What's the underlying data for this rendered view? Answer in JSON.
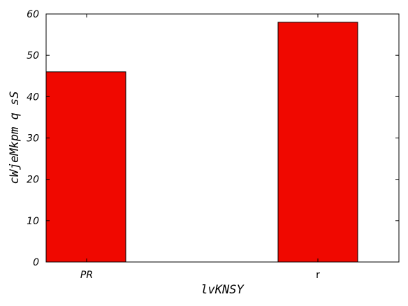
{
  "chart_data": {
    "type": "bar",
    "categories": [
      "PR",
      "r"
    ],
    "values": [
      46,
      58
    ],
    "xlabel": "lvKNSY",
    "ylabel": "cWjeMkpm q sS",
    "ylim": [
      0,
      60
    ],
    "yticks": [
      "0",
      "10",
      "20",
      "30",
      "40",
      "50",
      "60"
    ],
    "grid": false,
    "bar_color": "#f00800"
  }
}
